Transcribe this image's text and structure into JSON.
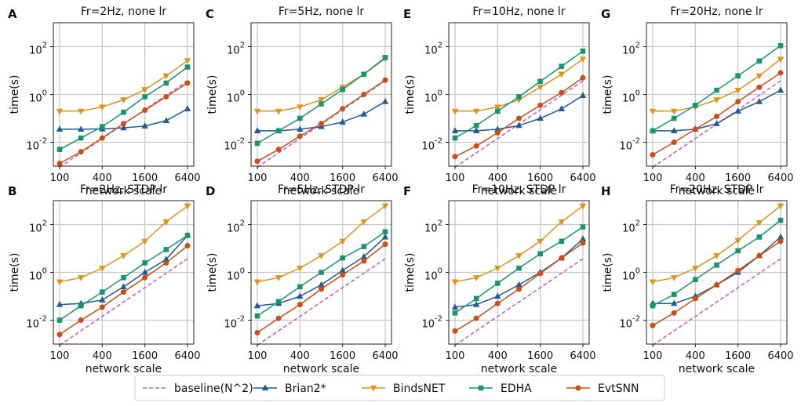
{
  "figure": {
    "legend_placement": "bottom-center",
    "legend": [
      {
        "series": "baseline",
        "label": "baseline(N^2)"
      },
      {
        "series": "brian2",
        "label": "Brian2*"
      },
      {
        "series": "bindsnet",
        "label": "BindsNET"
      },
      {
        "series": "edha",
        "label": "EDHA"
      },
      {
        "series": "evtsnn",
        "label": "EvtSNN"
      }
    ]
  },
  "styles": {
    "baseline": {
      "color": "#cc55bb",
      "marker": "none",
      "dash": true
    },
    "brian2": {
      "color": "#1f5c99",
      "marker": "triangle-up",
      "dash": false
    },
    "bindsnet": {
      "color": "#e0921a",
      "marker": "triangle-down",
      "dash": false
    },
    "edha": {
      "color": "#199473",
      "marker": "square",
      "dash": false
    },
    "evtsnn": {
      "color": "#cc4e15",
      "marker": "circle",
      "dash": false
    }
  },
  "chart_data": [
    {
      "id": "A",
      "letter": "A",
      "type": "line",
      "title": "Fr=2Hz, none lr",
      "xlabel": "network scale",
      "ylabel": "time(s)",
      "xscale": "log2",
      "yscale": "log10",
      "x": [
        100,
        200,
        400,
        800,
        1600,
        3200,
        6400
      ],
      "xticks": [
        100,
        400,
        1600,
        6400
      ],
      "xticklabels": [
        "100",
        "400",
        "1600",
        "6400"
      ],
      "ylim_exp": [
        -3,
        3
      ],
      "yticks_exp": [
        -2,
        0,
        2
      ],
      "yticklabels": [
        "10",
        "10",
        "10"
      ],
      "yticksups": [
        "-2",
        "0",
        "2"
      ],
      "grid": true,
      "series": [
        {
          "key": "baseline",
          "name": "baseline(N^2)",
          "values": [
            0.0009,
            0.0036,
            0.0144,
            0.0576,
            0.23,
            0.92,
            3.7
          ]
        },
        {
          "key": "brian2",
          "name": "Brian2*",
          "values": [
            0.035,
            0.035,
            0.036,
            0.04,
            0.048,
            0.08,
            0.25
          ]
        },
        {
          "key": "bindsnet",
          "name": "BindsNET",
          "values": [
            0.2,
            0.2,
            0.3,
            0.6,
            1.6,
            6,
            26
          ]
        },
        {
          "key": "edha",
          "name": "EDHA",
          "values": [
            0.005,
            0.015,
            0.045,
            0.18,
            0.8,
            3,
            14
          ]
        },
        {
          "key": "evtsnn",
          "name": "EvtSNN",
          "values": [
            0.0013,
            0.004,
            0.015,
            0.06,
            0.22,
            0.8,
            3
          ]
        }
      ]
    },
    {
      "id": "C",
      "letter": "C",
      "type": "line",
      "title": "Fr=5Hz, none lr",
      "xlabel": "network scale",
      "ylabel": "time(s)",
      "xscale": "log2",
      "yscale": "log10",
      "x": [
        100,
        200,
        400,
        800,
        1600,
        3200,
        6400
      ],
      "xticks": [
        100,
        400,
        1600,
        6400
      ],
      "xticklabels": [
        "100",
        "400",
        "1600",
        "6400"
      ],
      "ylim_exp": [
        -3,
        3
      ],
      "yticks_exp": [
        -2,
        0,
        2
      ],
      "yticklabels": [
        "10",
        "10",
        "10"
      ],
      "yticksups": [
        "-2",
        "0",
        "2"
      ],
      "grid": true,
      "series": [
        {
          "key": "baseline",
          "name": "baseline(N^2)",
          "values": [
            0.0009,
            0.0036,
            0.0144,
            0.0576,
            0.23,
            0.92,
            3.7
          ]
        },
        {
          "key": "brian2",
          "name": "Brian2*",
          "values": [
            0.03,
            0.03,
            0.035,
            0.045,
            0.07,
            0.15,
            0.5
          ]
        },
        {
          "key": "bindsnet",
          "name": "BindsNET",
          "values": [
            0.2,
            0.2,
            0.3,
            0.6,
            2,
            7,
            32
          ]
        },
        {
          "key": "edha",
          "name": "EDHA",
          "values": [
            0.009,
            0.03,
            0.1,
            0.4,
            1.6,
            7,
            35
          ]
        },
        {
          "key": "evtsnn",
          "name": "EvtSNN",
          "values": [
            0.0016,
            0.005,
            0.018,
            0.06,
            0.25,
            1,
            4
          ]
        }
      ]
    },
    {
      "id": "E",
      "letter": "E",
      "type": "line",
      "title": "Fr=10Hz, none lr",
      "xlabel": "network scale",
      "ylabel": "time(s)",
      "xscale": "log2",
      "yscale": "log10",
      "x": [
        100,
        200,
        400,
        800,
        1600,
        3200,
        6400
      ],
      "xticks": [
        100,
        400,
        1600,
        6400
      ],
      "xticklabels": [
        "100",
        "400",
        "1600",
        "6400"
      ],
      "ylim_exp": [
        -3,
        3
      ],
      "yticks_exp": [
        -2,
        0,
        2
      ],
      "yticklabels": [
        "10",
        "10",
        "10"
      ],
      "yticksups": [
        "-2",
        "0",
        "2"
      ],
      "grid": true,
      "series": [
        {
          "key": "baseline",
          "name": "baseline(N^2)",
          "values": [
            0.0009,
            0.0036,
            0.0144,
            0.0576,
            0.23,
            0.92,
            3.7
          ]
        },
        {
          "key": "brian2",
          "name": "Brian2*",
          "values": [
            0.03,
            0.03,
            0.035,
            0.05,
            0.1,
            0.25,
            0.9
          ]
        },
        {
          "key": "bindsnet",
          "name": "BindsNET",
          "values": [
            0.2,
            0.2,
            0.3,
            0.6,
            2,
            7,
            30
          ]
        },
        {
          "key": "edha",
          "name": "EDHA",
          "values": [
            0.015,
            0.05,
            0.2,
            0.8,
            3.5,
            15,
            65
          ]
        },
        {
          "key": "evtsnn",
          "name": "EvtSNN",
          "values": [
            0.0025,
            0.007,
            0.025,
            0.1,
            0.35,
            1.2,
            5
          ]
        }
      ]
    },
    {
      "id": "G",
      "letter": "G",
      "type": "line",
      "title": "Fr=20Hz, none lr",
      "xlabel": "network scale",
      "ylabel": "time(s)",
      "xscale": "log2",
      "yscale": "log10",
      "x": [
        100,
        200,
        400,
        800,
        1600,
        3200,
        6400
      ],
      "xticks": [
        100,
        400,
        1600,
        6400
      ],
      "xticklabels": [
        "100",
        "400",
        "1600",
        "6400"
      ],
      "ylim_exp": [
        -3,
        3
      ],
      "yticks_exp": [
        -2,
        0,
        2
      ],
      "yticklabels": [
        "10",
        "10",
        "10"
      ],
      "yticksups": [
        "-2",
        "0",
        "2"
      ],
      "grid": true,
      "series": [
        {
          "key": "baseline",
          "name": "baseline(N^2)",
          "values": [
            0.0009,
            0.0036,
            0.0144,
            0.0576,
            0.23,
            0.92,
            3.7
          ]
        },
        {
          "key": "brian2",
          "name": "Brian2*",
          "values": [
            0.03,
            0.03,
            0.035,
            0.06,
            0.2,
            0.5,
            1.5
          ]
        },
        {
          "key": "bindsnet",
          "name": "BindsNET",
          "values": [
            0.2,
            0.2,
            0.3,
            0.6,
            1.5,
            6,
            30
          ]
        },
        {
          "key": "edha",
          "name": "EDHA",
          "values": [
            0.03,
            0.1,
            0.35,
            1.5,
            6,
            25,
            110
          ]
        },
        {
          "key": "evtsnn",
          "name": "EvtSNN",
          "values": [
            0.003,
            0.01,
            0.035,
            0.12,
            0.5,
            2,
            8
          ]
        }
      ]
    },
    {
      "id": "B",
      "letter": "B",
      "type": "line",
      "title": "Fr=2Hz, STDP lr",
      "xlabel": "network scale",
      "ylabel": "time(s)",
      "xscale": "log2",
      "yscale": "log10",
      "x": [
        100,
        200,
        400,
        800,
        1600,
        3200,
        6400
      ],
      "xticks": [
        100,
        400,
        1600,
        6400
      ],
      "xticklabels": [
        "100",
        "400",
        "1600",
        "6400"
      ],
      "ylim_exp": [
        -3,
        3
      ],
      "yticks_exp": [
        -2,
        0,
        2
      ],
      "yticklabels": [
        "10",
        "10",
        "10"
      ],
      "yticksups": [
        "-2",
        "0",
        "2"
      ],
      "grid": true,
      "series": [
        {
          "key": "baseline",
          "name": "baseline(N^2)",
          "values": [
            0.0009,
            0.0036,
            0.0144,
            0.0576,
            0.23,
            0.92,
            3.7
          ]
        },
        {
          "key": "brian2",
          "name": "Brian2*",
          "values": [
            0.045,
            0.05,
            0.07,
            0.25,
            1,
            3.5,
            35
          ]
        },
        {
          "key": "bindsnet",
          "name": "BindsNET",
          "values": [
            0.4,
            0.6,
            1.5,
            5,
            20,
            130,
            600
          ]
        },
        {
          "key": "edha",
          "name": "EDHA",
          "values": [
            0.01,
            0.04,
            0.15,
            0.6,
            2.5,
            9,
            35
          ]
        },
        {
          "key": "evtsnn",
          "name": "EvtSNN",
          "values": [
            0.0025,
            0.01,
            0.035,
            0.15,
            0.6,
            2.5,
            13
          ]
        }
      ]
    },
    {
      "id": "D",
      "letter": "D",
      "type": "line",
      "title": "Fr=5Hz, STDP lr",
      "xlabel": "network scale",
      "ylabel": "time(s)",
      "xscale": "log2",
      "yscale": "log10",
      "x": [
        100,
        200,
        400,
        800,
        1600,
        3200,
        6400
      ],
      "xticks": [
        100,
        400,
        1600,
        6400
      ],
      "xticklabels": [
        "100",
        "400",
        "1600",
        "6400"
      ],
      "ylim_exp": [
        -3,
        3
      ],
      "yticks_exp": [
        -2,
        0,
        2
      ],
      "yticklabels": [
        "10",
        "10",
        "10"
      ],
      "yticksups": [
        "-2",
        "0",
        "2"
      ],
      "grid": true,
      "series": [
        {
          "key": "baseline",
          "name": "baseline(N^2)",
          "values": [
            0.0009,
            0.0036,
            0.0144,
            0.0576,
            0.23,
            0.92,
            3.7
          ]
        },
        {
          "key": "brian2",
          "name": "Brian2*",
          "values": [
            0.04,
            0.05,
            0.1,
            0.3,
            1.2,
            4.5,
            30
          ]
        },
        {
          "key": "bindsnet",
          "name": "BindsNET",
          "values": [
            0.4,
            0.6,
            1.5,
            5,
            20,
            130,
            600
          ]
        },
        {
          "key": "edha",
          "name": "EDHA",
          "values": [
            0.015,
            0.06,
            0.25,
            1,
            4,
            12,
            50
          ]
        },
        {
          "key": "evtsnn",
          "name": "EvtSNN",
          "values": [
            0.003,
            0.012,
            0.045,
            0.2,
            0.8,
            3,
            15
          ]
        }
      ]
    },
    {
      "id": "F",
      "letter": "F",
      "type": "line",
      "title": "Fr=10Hz, STDP lr",
      "xlabel": "network scale",
      "ylabel": "time(s)",
      "xscale": "log2",
      "yscale": "log10",
      "x": [
        100,
        200,
        400,
        800,
        1600,
        3200,
        6400
      ],
      "xticks": [
        100,
        400,
        1600,
        6400
      ],
      "xticklabels": [
        "100",
        "400",
        "1600",
        "6400"
      ],
      "ylim_exp": [
        -3,
        3
      ],
      "yticks_exp": [
        -2,
        0,
        2
      ],
      "yticklabels": [
        "10",
        "10",
        "10"
      ],
      "yticksups": [
        "-2",
        "0",
        "2"
      ],
      "grid": true,
      "series": [
        {
          "key": "baseline",
          "name": "baseline(N^2)",
          "values": [
            0.0009,
            0.0036,
            0.0144,
            0.0576,
            0.23,
            0.92,
            3.7
          ]
        },
        {
          "key": "brian2",
          "name": "Brian2*",
          "values": [
            0.035,
            0.045,
            0.1,
            0.3,
            1,
            4,
            25
          ]
        },
        {
          "key": "bindsnet",
          "name": "BindsNET",
          "values": [
            0.4,
            0.6,
            1.5,
            5,
            20,
            130,
            600
          ]
        },
        {
          "key": "edha",
          "name": "EDHA",
          "values": [
            0.02,
            0.08,
            0.35,
            1.5,
            6,
            20,
            80
          ]
        },
        {
          "key": "evtsnn",
          "name": "EvtSNN",
          "values": [
            0.0035,
            0.012,
            0.05,
            0.2,
            0.9,
            4,
            17
          ]
        }
      ]
    },
    {
      "id": "H",
      "letter": "H",
      "type": "line",
      "title": "Fr=20Hz, STDP lr",
      "xlabel": "network scale",
      "ylabel": "time(s)",
      "xscale": "log2",
      "yscale": "log10",
      "x": [
        100,
        200,
        400,
        800,
        1600,
        3200,
        6400
      ],
      "xticks": [
        100,
        400,
        1600,
        6400
      ],
      "xticklabels": [
        "100",
        "400",
        "1600",
        "6400"
      ],
      "ylim_exp": [
        -3,
        3
      ],
      "yticks_exp": [
        -2,
        0,
        2
      ],
      "yticklabels": [
        "10",
        "10",
        "10"
      ],
      "yticksups": [
        "-2",
        "0",
        "2"
      ],
      "grid": true,
      "series": [
        {
          "key": "baseline",
          "name": "baseline(N^2)",
          "values": [
            0.0009,
            0.0036,
            0.0144,
            0.0576,
            0.23,
            0.92,
            3.7
          ]
        },
        {
          "key": "brian2",
          "name": "Brian2*",
          "values": [
            0.05,
            0.05,
            0.1,
            0.3,
            1,
            5,
            30
          ]
        },
        {
          "key": "bindsnet",
          "name": "BindsNET",
          "values": [
            0.4,
            0.6,
            1.5,
            5,
            22,
            120,
            600
          ]
        },
        {
          "key": "edha",
          "name": "EDHA",
          "values": [
            0.04,
            0.12,
            0.5,
            2,
            8,
            30,
            150
          ]
        },
        {
          "key": "evtsnn",
          "name": "EvtSNN",
          "values": [
            0.006,
            0.02,
            0.08,
            0.3,
            1.2,
            5,
            20
          ]
        }
      ]
    }
  ]
}
